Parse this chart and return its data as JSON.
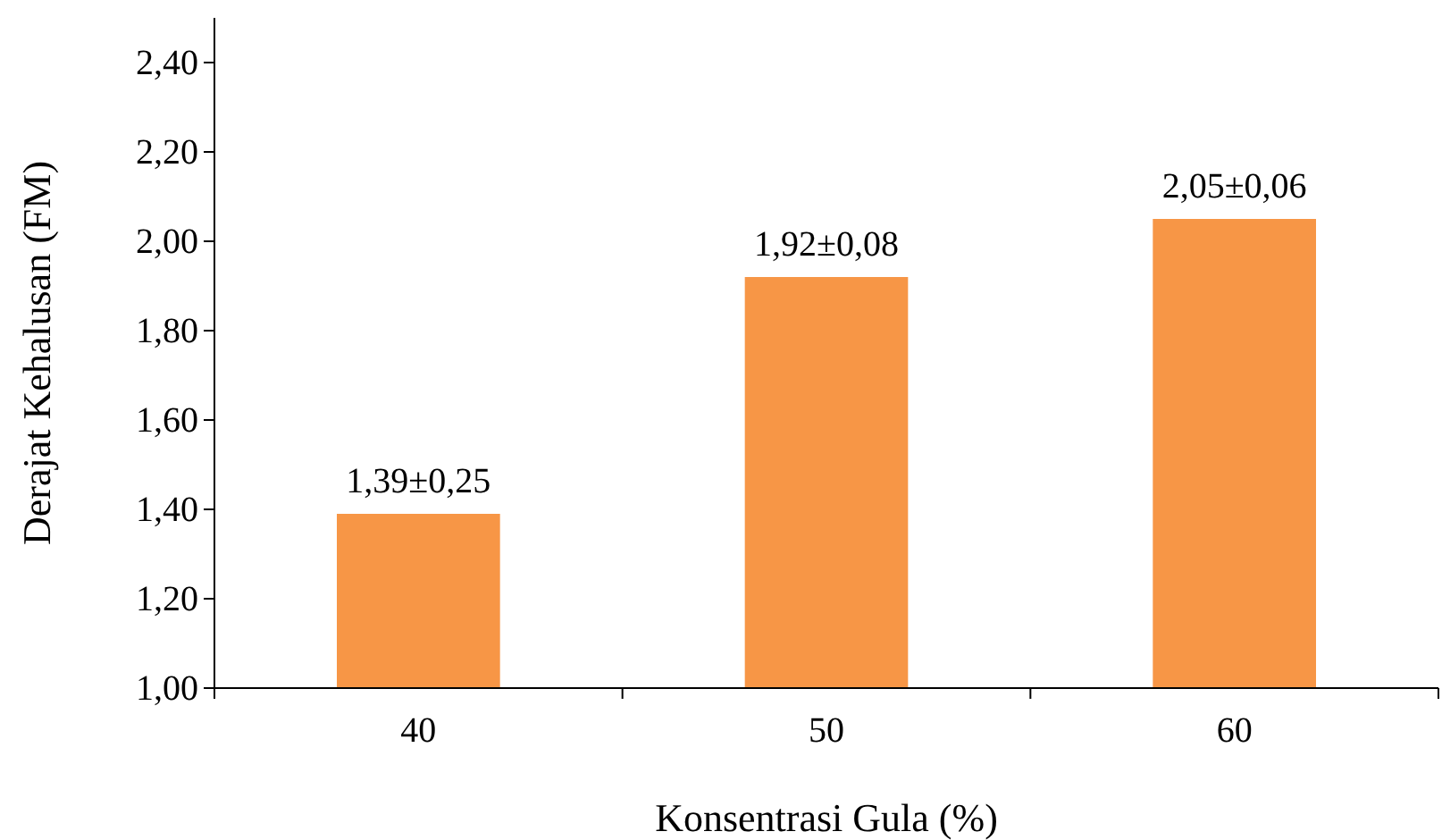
{
  "chart_data": {
    "type": "bar",
    "xlabel": "Konsentrasi Gula (%)",
    "ylabel": "Derajat Kehalusan (FM)",
    "categories": [
      "40",
      "50",
      "60"
    ],
    "values": [
      1.39,
      1.92,
      2.05
    ],
    "color": "#f79646",
    "value_labels": [
      "1,39±0,25",
      "1,92±0,08",
      "2,05±0,06"
    ],
    "ylim": [
      1.0,
      2.5
    ],
    "yticks": [
      {
        "value": 1.0,
        "label": "1,00"
      },
      {
        "value": 1.2,
        "label": "1,20"
      },
      {
        "value": 1.4,
        "label": "1,40"
      },
      {
        "value": 1.6,
        "label": "1,60"
      },
      {
        "value": 1.8,
        "label": "1,80"
      },
      {
        "value": 2.0,
        "label": "2,00"
      },
      {
        "value": 2.2,
        "label": "2,20"
      },
      {
        "value": 2.4,
        "label": "2,40"
      }
    ],
    "grid": false
  }
}
